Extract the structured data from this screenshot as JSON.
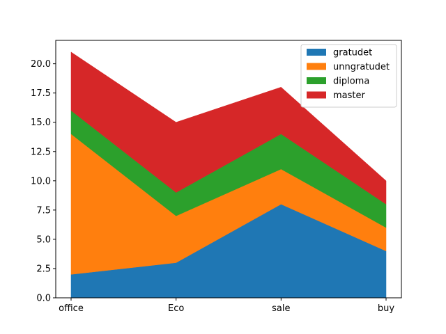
{
  "chart_data": {
    "type": "area",
    "stacked": true,
    "categories": [
      "office",
      "Eco",
      "sale",
      "buy"
    ],
    "series": [
      {
        "name": "gratudet",
        "values": [
          2,
          3,
          8,
          4
        ],
        "color": "#1f77b4"
      },
      {
        "name": "unngratudet",
        "values": [
          12,
          4,
          3,
          2
        ],
        "color": "#ff7f0e"
      },
      {
        "name": "diploma",
        "values": [
          2,
          2,
          3,
          2
        ],
        "color": "#2ca02c"
      },
      {
        "name": "master",
        "values": [
          5,
          6,
          4,
          2
        ],
        "color": "#d62728"
      }
    ],
    "ylim": [
      0,
      22
    ],
    "yticks": [
      "0.0",
      "2.5",
      "5.0",
      "7.5",
      "10.0",
      "12.5",
      "15.0",
      "17.5",
      "20.0"
    ],
    "grid": false,
    "legend_position": "top-right",
    "title": "",
    "xlabel": "",
    "ylabel": ""
  }
}
